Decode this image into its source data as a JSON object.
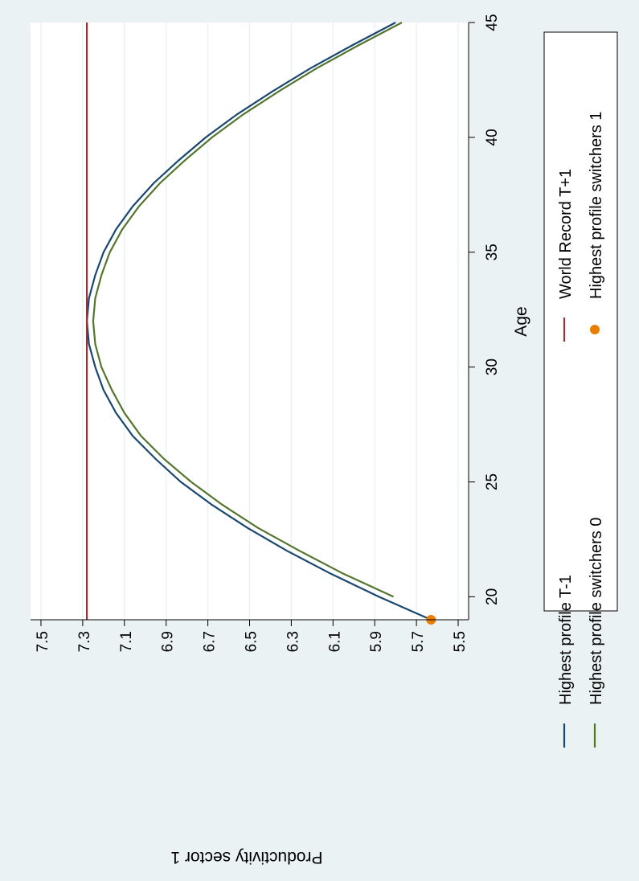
{
  "chart_data": {
    "type": "line",
    "orientation": "rotated-90-clockwise",
    "xlabel": "Age",
    "ylabel": "Productivity sector 1",
    "xlim": [
      19,
      45
    ],
    "ylim": [
      5.45,
      7.55
    ],
    "x_ticks": [
      {
        "value": 20,
        "label": "20"
      },
      {
        "value": 25,
        "label": "25"
      },
      {
        "value": 30,
        "label": "30"
      },
      {
        "value": 35,
        "label": "35"
      },
      {
        "value": 40,
        "label": "40"
      },
      {
        "value": 45,
        "label": "45"
      }
    ],
    "y_ticks": [
      {
        "value": 5.5,
        "label": "5.5"
      },
      {
        "value": 5.7,
        "label": "5.7"
      },
      {
        "value": 5.9,
        "label": "5.9"
      },
      {
        "value": 6.1,
        "label": "6.1"
      },
      {
        "value": 6.3,
        "label": "6.3"
      },
      {
        "value": 6.5,
        "label": "6.5"
      },
      {
        "value": 6.7,
        "label": "6.7"
      },
      {
        "value": 6.9,
        "label": "6.9"
      },
      {
        "value": 7.1,
        "label": "7.1"
      },
      {
        "value": 7.3,
        "label": "7.3"
      },
      {
        "value": 7.5,
        "label": "7.5"
      }
    ],
    "grid": true,
    "legend_placement": "bottom",
    "series": [
      {
        "name": "Highest profile T-1",
        "kind": "line",
        "color": "#1a476f",
        "points": [
          [
            19,
            5.63
          ],
          [
            20,
            5.88
          ],
          [
            21,
            6.11
          ],
          [
            22,
            6.32
          ],
          [
            23,
            6.51
          ],
          [
            24,
            6.68
          ],
          [
            25,
            6.83
          ],
          [
            26,
            6.95
          ],
          [
            27,
            7.06
          ],
          [
            28,
            7.14
          ],
          [
            29,
            7.2
          ],
          [
            30,
            7.24
          ],
          [
            31,
            7.27
          ],
          [
            32,
            7.28
          ],
          [
            33,
            7.27
          ],
          [
            34,
            7.24
          ],
          [
            35,
            7.2
          ],
          [
            36,
            7.14
          ],
          [
            37,
            7.06
          ],
          [
            38,
            6.96
          ],
          [
            39,
            6.84
          ],
          [
            40,
            6.71
          ],
          [
            41,
            6.56
          ],
          [
            42,
            6.39
          ],
          [
            43,
            6.21
          ],
          [
            44,
            6.01
          ],
          [
            45,
            5.8
          ]
        ]
      },
      {
        "name": "Highest profile switchers 0",
        "kind": "line",
        "color": "#55752f",
        "points": [
          [
            20,
            5.81
          ],
          [
            21,
            6.05
          ],
          [
            22,
            6.26
          ],
          [
            23,
            6.46
          ],
          [
            24,
            6.63
          ],
          [
            25,
            6.78
          ],
          [
            26,
            6.91
          ],
          [
            27,
            7.02
          ],
          [
            28,
            7.1
          ],
          [
            29,
            7.16
          ],
          [
            30,
            7.21
          ],
          [
            31,
            7.24
          ],
          [
            32,
            7.25
          ],
          [
            33,
            7.24
          ],
          [
            34,
            7.21
          ],
          [
            35,
            7.17
          ],
          [
            36,
            7.11
          ],
          [
            37,
            7.03
          ],
          [
            38,
            6.93
          ],
          [
            39,
            6.81
          ],
          [
            40,
            6.68
          ],
          [
            41,
            6.53
          ],
          [
            42,
            6.36
          ],
          [
            43,
            6.18
          ],
          [
            44,
            5.98
          ],
          [
            45,
            5.77
          ]
        ]
      },
      {
        "name": "World Record T+1",
        "kind": "line",
        "color": "#90353b",
        "points": [
          [
            19,
            7.28
          ],
          [
            45,
            7.28
          ]
        ]
      },
      {
        "name": "Highest profile switchers 1",
        "kind": "scatter",
        "color": "#e87d00",
        "points": [
          [
            19,
            5.63
          ]
        ]
      }
    ]
  }
}
